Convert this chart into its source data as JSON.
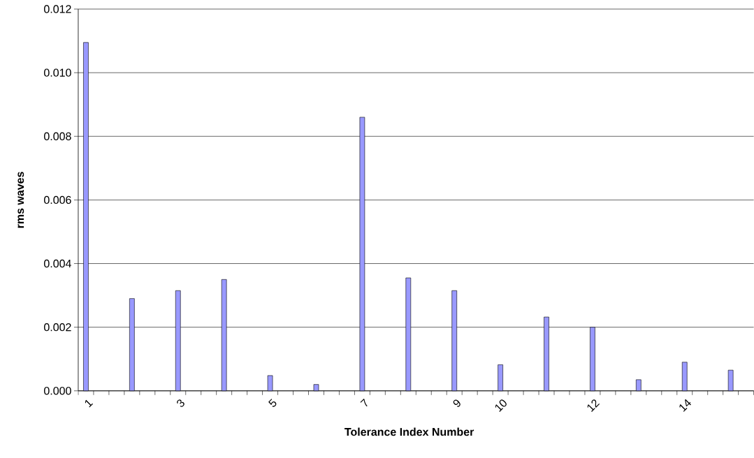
{
  "chart_data": {
    "type": "bar",
    "xlabel": "Tolerance Index Number",
    "ylabel": "rms waves",
    "categories": [
      "1",
      null,
      null,
      null,
      null,
      null,
      "3",
      null,
      null,
      null,
      null,
      null,
      "5",
      null,
      null,
      null,
      null,
      null,
      "7",
      null,
      null,
      null,
      null,
      null,
      "9",
      null,
      null,
      "10",
      null,
      null,
      null,
      null,
      null,
      "12",
      null,
      null,
      null,
      null,
      null,
      "14",
      null,
      null,
      null,
      null
    ],
    "values": [
      0.01095,
      null,
      null,
      0.0029,
      null,
      null,
      0.00315,
      null,
      null,
      0.0035,
      null,
      null,
      0.00048,
      null,
      null,
      0.0002,
      null,
      null,
      0.0086,
      null,
      null,
      0.00355,
      null,
      null,
      0.00315,
      null,
      null,
      0.00082,
      null,
      null,
      0.00232,
      null,
      null,
      0.002,
      null,
      null,
      0.00035,
      null,
      null,
      0.0009,
      null,
      null,
      0.00065,
      null
    ],
    "color": "#9999ff",
    "ylim": [
      0,
      0.012
    ],
    "yticks": [
      {
        "value": 0,
        "label": "0.000"
      },
      {
        "value": 0.002,
        "label": "0.002"
      },
      {
        "value": 0.004,
        "label": "0.004"
      },
      {
        "value": 0.006,
        "label": "0.006"
      },
      {
        "value": 0.008,
        "label": "0.008"
      },
      {
        "value": 0.01,
        "label": "0.010"
      },
      {
        "value": 0.012,
        "label": "0.012"
      }
    ],
    "grid": "y"
  }
}
